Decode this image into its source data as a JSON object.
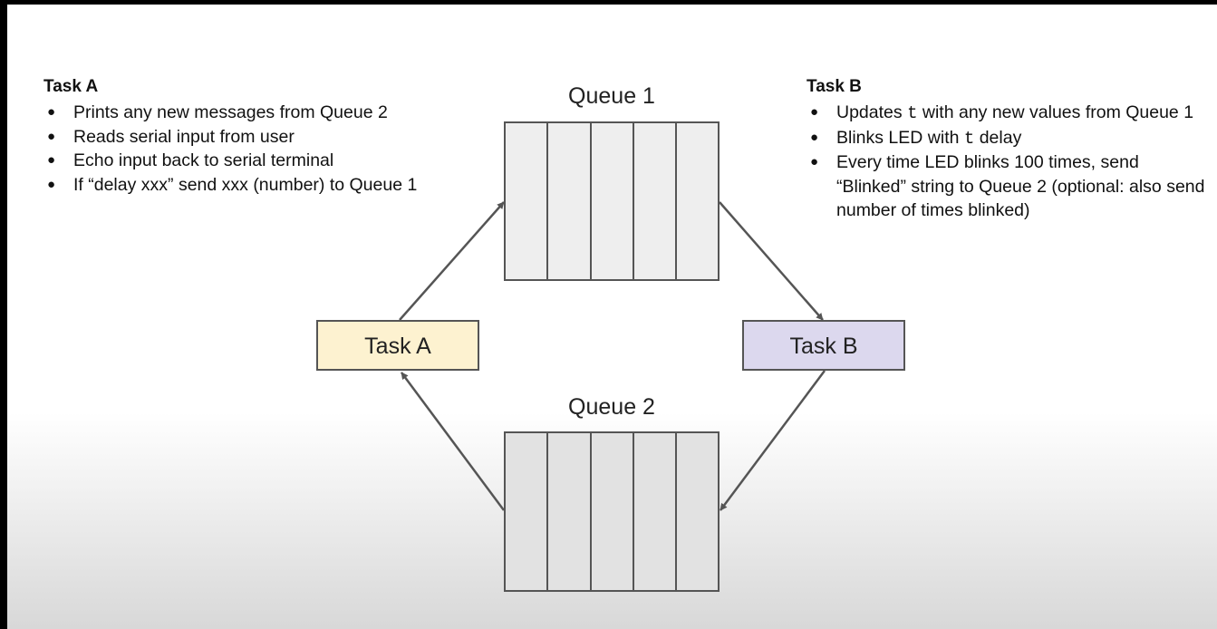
{
  "task_a_notes": {
    "heading": "Task A",
    "bullets": [
      "Prints any new messages from Queue 2",
      "Reads serial input from user",
      "Echo input back to serial terminal",
      "If “delay xxx” send xxx (number) to Queue 1"
    ]
  },
  "task_b_notes": {
    "heading": "Task B",
    "bullet1_pre": "Updates ",
    "bullet1_code": "t",
    "bullet1_post": " with any new values from Queue 1",
    "bullet2_pre": "Blinks LED with ",
    "bullet2_code": "t",
    "bullet2_post": " delay",
    "bullet3": "Every time LED blinks 100 times, send “Blinked” string to Queue 2 (optional: also send number of times blinked)"
  },
  "diagram": {
    "queue1_label": "Queue 1",
    "queue2_label": "Queue 2",
    "task_a_label": "Task A",
    "task_b_label": "Task B",
    "queue_slots": 5,
    "colors": {
      "task_a_fill": "#fdf2d0",
      "task_b_fill": "#dcd8ee",
      "queue_fill": "#eeeeee",
      "stroke": "#555555"
    }
  }
}
